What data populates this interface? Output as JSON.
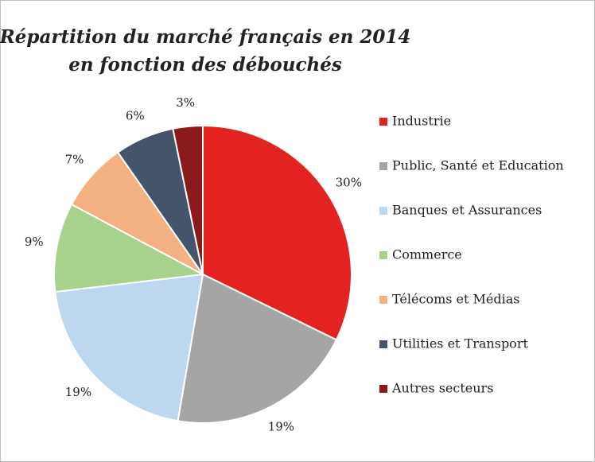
{
  "chart_data": {
    "type": "pie",
    "title": [
      "Répartition du marché français en 2014",
      "en fonction des débouchés"
    ],
    "categories": [
      "Industrie",
      "Public, Santé et Education",
      "Banques et Assurances",
      "Commerce",
      "Télécoms et Médias",
      "Utilities et Transport",
      "Autres secteurs"
    ],
    "values": [
      30,
      19,
      19,
      9,
      7,
      6,
      3
    ],
    "value_labels": [
      "30%",
      "19%",
      "19%",
      "9%",
      "7%",
      "6%",
      "3%"
    ],
    "colors": [
      "#e32322",
      "#a5a5a5",
      "#bdd7ee",
      "#a9d18e",
      "#f4b183",
      "#44546a",
      "#8b1a1a"
    ],
    "legend": "right"
  }
}
